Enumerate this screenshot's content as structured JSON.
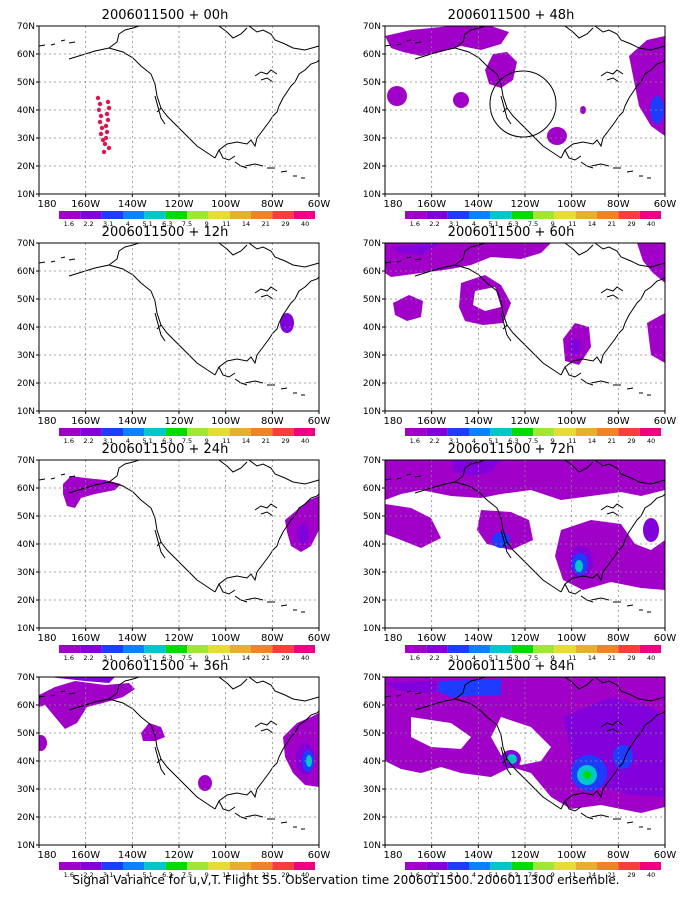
{
  "panels": [
    {
      "title": "2006011500 + 00h"
    },
    {
      "title": "2006011500 + 12h"
    },
    {
      "title": "2006011500 + 24h"
    },
    {
      "title": "2006011500 + 36h"
    },
    {
      "title": "2006011500 + 48h"
    },
    {
      "title": "2006011500 + 60h"
    },
    {
      "title": "2006011500 + 72h"
    },
    {
      "title": "2006011500 + 84h"
    }
  ],
  "axes": {
    "lat_labels": [
      "10N",
      "20N",
      "30N",
      "40N",
      "50N",
      "60N",
      "70N"
    ],
    "lon_labels": [
      "180",
      "160W",
      "140W",
      "120W",
      "100W",
      "80W",
      "60W"
    ]
  },
  "colorbar": {
    "labels": [
      "1.6",
      "2.2",
      "3.1",
      "4",
      "5.1",
      "6.3",
      "7.5",
      "9",
      "11",
      "14",
      "21",
      "29",
      "40"
    ],
    "colors": [
      "#a000c8",
      "#8200dc",
      "#1e3cff",
      "#0a82ff",
      "#00c8c8",
      "#00dc00",
      "#a0e632",
      "#e6dc32",
      "#e6af2d",
      "#f08228",
      "#fa3c3c",
      "#f00082"
    ]
  },
  "footer": "Signal Variance for u,v,T. Flight 55. Observation time 2006011500. 2006011300 ensemble."
}
